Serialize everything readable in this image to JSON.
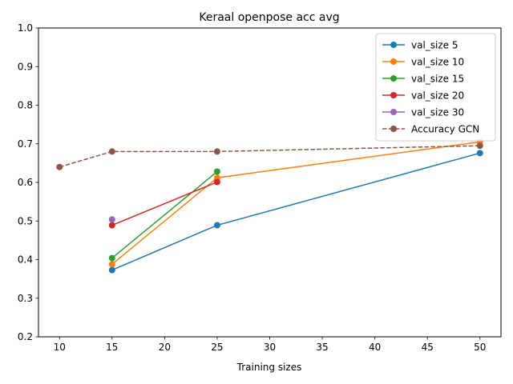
{
  "chart_data": {
    "type": "line",
    "title": "Keraal openpose acc avg",
    "xlabel": "Training sizes",
    "ylabel": "",
    "xlim": [
      8.0,
      52.0
    ],
    "ylim": [
      0.2,
      1.0
    ],
    "xticks": [
      10,
      15,
      20,
      25,
      30,
      35,
      40,
      45,
      50
    ],
    "yticks": [
      0.2,
      0.3,
      0.4,
      0.5,
      0.6,
      0.7,
      0.8,
      0.9,
      1.0
    ],
    "grid": false,
    "legend_position": "top-right",
    "series": [
      {
        "name": "val_size 5",
        "color": "#1f77b4",
        "linestyle": "solid",
        "x": [
          15,
          25,
          50
        ],
        "y": [
          0.373,
          0.489,
          0.676
        ]
      },
      {
        "name": "val_size 10",
        "color": "#ff7f0e",
        "linestyle": "solid",
        "x": [
          15,
          25,
          50
        ],
        "y": [
          0.388,
          0.612,
          0.705
        ]
      },
      {
        "name": "val_size 15",
        "color": "#2ca02c",
        "linestyle": "solid",
        "x": [
          15,
          25
        ],
        "y": [
          0.404,
          0.628
        ]
      },
      {
        "name": "val_size 20",
        "color": "#d62728",
        "linestyle": "solid",
        "x": [
          15,
          25
        ],
        "y": [
          0.489,
          0.601
        ]
      },
      {
        "name": "val_size 30",
        "color": "#9467bd",
        "linestyle": "solid",
        "x": [
          15
        ],
        "y": [
          0.504
        ]
      },
      {
        "name": "Accuracy GCN",
        "color": "#8c564b",
        "linestyle": "dashed",
        "x": [
          10,
          15,
          25,
          50
        ],
        "y": [
          0.64,
          0.68,
          0.68,
          0.695
        ]
      }
    ]
  }
}
